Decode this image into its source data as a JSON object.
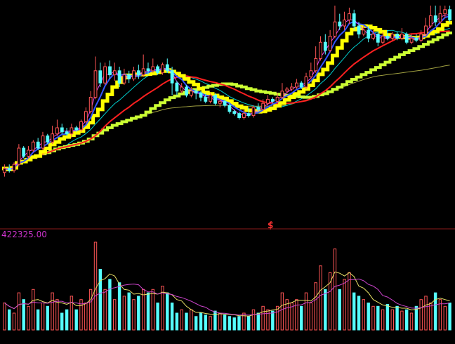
{
  "volume_max_label": "422325.00",
  "marker_symbol": "$̂",
  "colors": {
    "background": "#000000",
    "divider": "#8b1a1a",
    "up_candle": "#ff5555",
    "down_candle": "#55ffff",
    "volume_label": "#cc33cc",
    "marker": "#ff3333",
    "ma_stair": "#ffff00",
    "ma_stair_slow": "#ccff33",
    "ma_red": "#ff2020",
    "ma_magenta": "#dd44ff",
    "ma_blue": "#3355ff",
    "ma_cyan": "#00cccc",
    "ma_olive": "#a0a040",
    "vol_ma_yellow": "#e8e066",
    "vol_ma_magenta": "#cc44cc"
  },
  "chart_data": [
    {
      "type": "candlestick",
      "title": "",
      "ylim": [
        0,
        100
      ],
      "candles": [
        [
          18,
          20,
          16,
          22,
          1
        ],
        [
          20,
          19,
          18,
          22,
          0
        ],
        [
          19,
          22,
          18,
          23,
          1
        ],
        [
          22,
          30,
          21,
          32,
          1
        ],
        [
          30,
          26,
          25,
          31,
          0
        ],
        [
          26,
          29,
          25,
          31,
          1
        ],
        [
          29,
          33,
          28,
          34,
          1
        ],
        [
          33,
          30,
          29,
          35,
          0
        ],
        [
          30,
          36,
          29,
          38,
          1
        ],
        [
          36,
          33,
          32,
          37,
          0
        ],
        [
          33,
          37,
          32,
          41,
          1
        ],
        [
          37,
          40,
          36,
          44,
          1
        ],
        [
          40,
          38,
          37,
          42,
          0
        ],
        [
          38,
          37,
          36,
          40,
          0
        ],
        [
          37,
          40,
          35,
          42,
          1
        ],
        [
          40,
          39,
          38,
          41,
          0
        ],
        [
          39,
          43,
          38,
          44,
          1
        ],
        [
          43,
          48,
          42,
          50,
          1
        ],
        [
          48,
          55,
          47,
          58,
          1
        ],
        [
          55,
          68,
          54,
          75,
          1
        ],
        [
          68,
          62,
          60,
          72,
          0
        ],
        [
          62,
          70,
          61,
          72,
          1
        ],
        [
          70,
          66,
          64,
          73,
          0
        ],
        [
          66,
          68,
          63,
          72,
          1
        ],
        [
          68,
          62,
          60,
          70,
          0
        ],
        [
          62,
          66,
          61,
          69,
          1
        ],
        [
          66,
          64,
          62,
          68,
          0
        ],
        [
          64,
          68,
          63,
          70,
          1
        ],
        [
          68,
          66,
          64,
          71,
          0
        ],
        [
          66,
          69,
          65,
          76,
          1
        ],
        [
          69,
          68,
          66,
          72,
          0
        ],
        [
          68,
          70,
          67,
          74,
          1
        ],
        [
          70,
          67,
          66,
          71,
          0
        ],
        [
          67,
          71,
          66,
          72,
          1
        ],
        [
          71,
          68,
          67,
          74,
          0
        ],
        [
          68,
          62,
          56,
          70,
          0
        ],
        [
          62,
          58,
          56,
          63,
          0
        ],
        [
          58,
          60,
          57,
          62,
          1
        ],
        [
          60,
          56,
          55,
          61,
          0
        ],
        [
          56,
          58,
          55,
          60,
          1
        ],
        [
          58,
          57,
          54,
          59,
          0
        ],
        [
          57,
          55,
          53,
          58,
          0
        ],
        [
          55,
          53,
          52,
          57,
          0
        ],
        [
          53,
          56,
          52,
          57,
          1
        ],
        [
          56,
          52,
          51,
          57,
          0
        ],
        [
          52,
          53,
          50,
          54,
          1
        ],
        [
          53,
          51,
          50,
          54,
          0
        ],
        [
          51,
          48,
          47,
          52,
          0
        ],
        [
          48,
          47,
          46,
          49,
          0
        ],
        [
          47,
          45,
          44,
          48,
          0
        ],
        [
          45,
          47,
          44,
          49,
          1
        ],
        [
          47,
          46,
          45,
          50,
          0
        ],
        [
          46,
          50,
          45,
          51,
          1
        ],
        [
          50,
          49,
          48,
          52,
          0
        ],
        [
          49,
          52,
          48,
          54,
          1
        ],
        [
          52,
          54,
          51,
          56,
          1
        ],
        [
          54,
          53,
          52,
          55,
          0
        ],
        [
          53,
          55,
          52,
          57,
          1
        ],
        [
          55,
          58,
          54,
          62,
          1
        ],
        [
          58,
          59,
          57,
          60,
          1
        ],
        [
          59,
          60,
          58,
          62,
          1
        ],
        [
          60,
          62,
          59,
          64,
          1
        ],
        [
          62,
          60,
          59,
          63,
          0
        ],
        [
          60,
          65,
          59,
          67,
          1
        ],
        [
          65,
          68,
          64,
          72,
          1
        ],
        [
          68,
          74,
          67,
          80,
          1
        ],
        [
          74,
          82,
          73,
          85,
          1
        ],
        [
          82,
          78,
          76,
          86,
          0
        ],
        [
          78,
          85,
          77,
          88,
          1
        ],
        [
          85,
          92,
          84,
          100,
          1
        ],
        [
          92,
          90,
          88,
          96,
          0
        ],
        [
          90,
          93,
          88,
          97,
          1
        ],
        [
          93,
          96,
          91,
          99,
          1
        ],
        [
          96,
          90,
          88,
          98,
          0
        ],
        [
          90,
          86,
          84,
          92,
          0
        ],
        [
          86,
          88,
          85,
          90,
          1
        ],
        [
          88,
          84,
          82,
          90,
          0
        ],
        [
          84,
          86,
          83,
          88,
          1
        ],
        [
          86,
          82,
          80,
          87,
          0
        ],
        [
          82,
          85,
          81,
          87,
          1
        ],
        [
          85,
          84,
          83,
          88,
          0
        ],
        [
          84,
          86,
          83,
          87,
          1
        ],
        [
          86,
          84,
          83,
          87,
          0
        ],
        [
          84,
          86,
          83,
          89,
          1
        ],
        [
          86,
          82,
          81,
          87,
          0
        ],
        [
          82,
          84,
          81,
          86,
          1
        ],
        [
          84,
          83,
          82,
          86,
          0
        ],
        [
          83,
          86,
          82,
          88,
          1
        ],
        [
          86,
          90,
          85,
          94,
          1
        ],
        [
          90,
          95,
          89,
          100,
          1
        ],
        [
          95,
          92,
          90,
          100,
          0
        ],
        [
          92,
          96,
          91,
          100,
          1
        ],
        [
          96,
          98,
          94,
          100,
          1
        ],
        [
          98,
          93,
          92,
          100,
          0
        ]
      ],
      "volume_max": 422325.0,
      "volumes": [
        40,
        30,
        25,
        55,
        45,
        35,
        60,
        30,
        40,
        35,
        55,
        45,
        25,
        30,
        50,
        30,
        45,
        40,
        60,
        130,
        90,
        60,
        75,
        45,
        70,
        50,
        55,
        45,
        50,
        60,
        55,
        60,
        40,
        65,
        55,
        40,
        25,
        30,
        25,
        30,
        20,
        25,
        22,
        20,
        28,
        25,
        22,
        20,
        18,
        20,
        25,
        20,
        30,
        25,
        35,
        30,
        28,
        35,
        55,
        45,
        40,
        45,
        35,
        55,
        40,
        70,
        95,
        60,
        85,
        120,
        60,
        75,
        85,
        55,
        50,
        45,
        40,
        35,
        35,
        30,
        38,
        30,
        35,
        28,
        30,
        25,
        35,
        45,
        50,
        40,
        55,
        45,
        35,
        40
      ]
    }
  ]
}
